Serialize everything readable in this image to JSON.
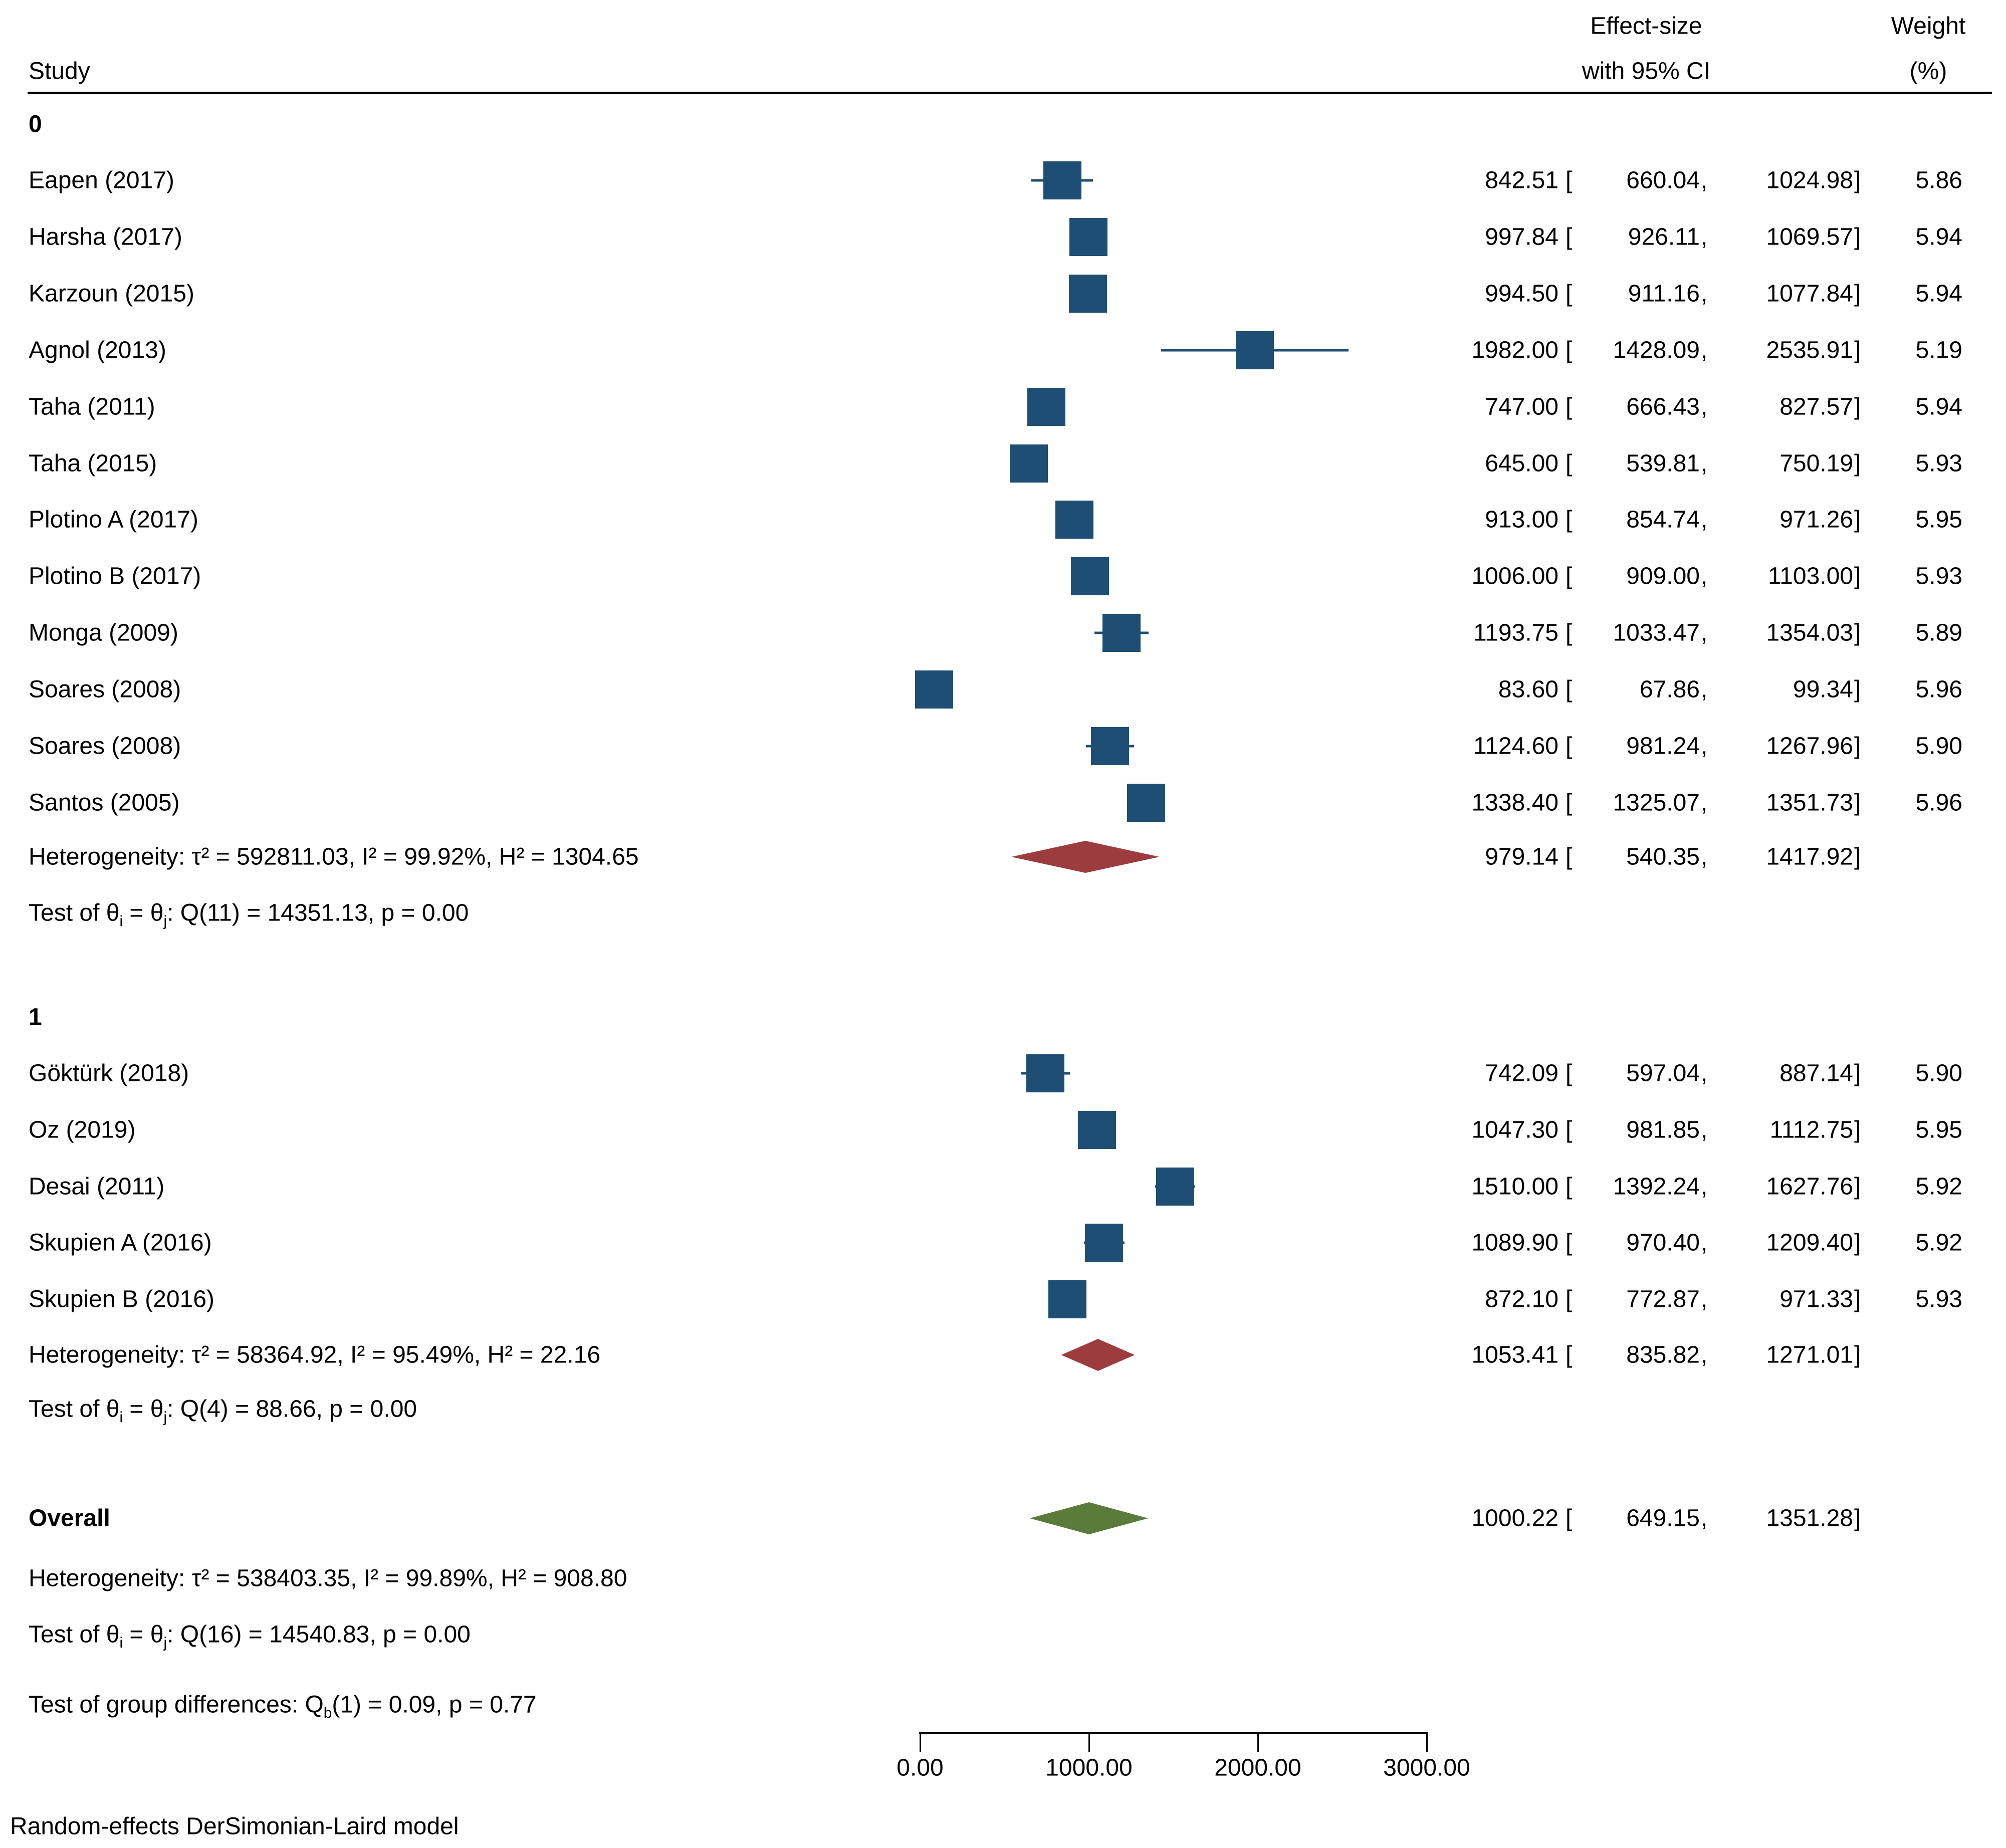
{
  "header": {
    "study": "Study",
    "effect_line1": "Effect-size",
    "effect_line2": "with 95% CI",
    "weight_line1": "Weight",
    "weight_line2": "(%)"
  },
  "punct": {
    "open": "[",
    "comma": ",",
    "close": "]"
  },
  "note": "Random-effects DerSimonian-Laird model",
  "colors": {
    "marker_blue": "#1F4E74",
    "subgroup_diamond_red": "#9D3C3E",
    "overall_diamond_green": "#5B7B3A"
  },
  "chart_data": {
    "type": "forest",
    "axis": {
      "min": 0,
      "max": 3000,
      "tick_values": [
        0,
        1000,
        2000,
        3000
      ],
      "tick_labels": [
        "0.00",
        "1000.00",
        "2000.00",
        "3000.00"
      ]
    },
    "groups": [
      {
        "label": "0",
        "studies": [
          {
            "name": "Eapen (2017)",
            "est": "842.51",
            "lo": "660.04",
            "hi": "1024.98",
            "weight": "5.86"
          },
          {
            "name": "Harsha (2017)",
            "est": "997.84",
            "lo": "926.11",
            "hi": "1069.57",
            "weight": "5.94"
          },
          {
            "name": "Karzoun (2015)",
            "est": "994.50",
            "lo": "911.16",
            "hi": "1077.84",
            "weight": "5.94"
          },
          {
            "name": "Agnol (2013)",
            "est": "1982.00",
            "lo": "1428.09",
            "hi": "2535.91",
            "weight": "5.19"
          },
          {
            "name": "Taha (2011)",
            "est": "747.00",
            "lo": "666.43",
            "hi": "827.57",
            "weight": "5.94"
          },
          {
            "name": "Taha (2015)",
            "est": "645.00",
            "lo": "539.81",
            "hi": "750.19",
            "weight": "5.93"
          },
          {
            "name": "Plotino A (2017)",
            "est": "913.00",
            "lo": "854.74",
            "hi": "971.26",
            "weight": "5.95"
          },
          {
            "name": "Plotino B (2017)",
            "est": "1006.00",
            "lo": "909.00",
            "hi": "1103.00",
            "weight": "5.93"
          },
          {
            "name": "Monga (2009)",
            "est": "1193.75",
            "lo": "1033.47",
            "hi": "1354.03",
            "weight": "5.89"
          },
          {
            "name": "Soares (2008)",
            "est": "83.60",
            "lo": "67.86",
            "hi": "99.34",
            "weight": "5.96"
          },
          {
            "name": "Soares (2008)",
            "est": "1124.60",
            "lo": "981.24",
            "hi": "1267.96",
            "weight": "5.90"
          },
          {
            "name": "Santos (2005)",
            "est": "1338.40",
            "lo": "1325.07",
            "hi": "1351.73",
            "weight": "5.96"
          }
        ],
        "diamond": {
          "est": "979.14",
          "lo": "540.35",
          "hi": "1417.92"
        },
        "het_text": "Heterogeneity: τ² = 592811.03, I² = 99.92%, H² = 1304.65",
        "test_segments": [
          {
            "t": "Test of θ"
          },
          {
            "sub": "i"
          },
          {
            "t": " = θ"
          },
          {
            "sub": "j"
          },
          {
            "t": ": Q(11) = 14351.13, p = 0.00"
          }
        ]
      },
      {
        "label": "1",
        "studies": [
          {
            "name": "Göktürk (2018)",
            "est": "742.09",
            "lo": "597.04",
            "hi": "887.14",
            "weight": "5.90"
          },
          {
            "name": "Oz (2019)",
            "est": "1047.30",
            "lo": "981.85",
            "hi": "1112.75",
            "weight": "5.95"
          },
          {
            "name": "Desai (2011)",
            "est": "1510.00",
            "lo": "1392.24",
            "hi": "1627.76",
            "weight": "5.92"
          },
          {
            "name": "Skupien A (2016)",
            "est": "1089.90",
            "lo": "970.40",
            "hi": "1209.40",
            "weight": "5.92"
          },
          {
            "name": "Skupien B (2016)",
            "est": "872.10",
            "lo": "772.87",
            "hi": "971.33",
            "weight": "5.93"
          }
        ],
        "diamond": {
          "est": "1053.41",
          "lo": "835.82",
          "hi": "1271.01"
        },
        "het_text": "Heterogeneity: τ² = 58364.92, I² = 95.49%, H² = 22.16",
        "test_segments": [
          {
            "t": "Test of θ"
          },
          {
            "sub": "i"
          },
          {
            "t": " = θ"
          },
          {
            "sub": "j"
          },
          {
            "t": ": Q(4) = 88.66, p = 0.00"
          }
        ]
      }
    ],
    "overall": {
      "label": "Overall",
      "diamond": {
        "est": "1000.22",
        "lo": "649.15",
        "hi": "1351.28"
      },
      "het_text": "Heterogeneity: τ² = 538403.35, I² = 99.89%, H² = 908.80",
      "test_segments": [
        {
          "t": "Test of θ"
        },
        {
          "sub": "i"
        },
        {
          "t": " = θ"
        },
        {
          "sub": "j"
        },
        {
          "t": ": Q(16) = 14540.83, p = 0.00"
        }
      ]
    },
    "group_diff_segments": [
      {
        "t": "Test of group differences: Q"
      },
      {
        "sub": "b"
      },
      {
        "t": "(1) = 0.09, p = 0.77"
      }
    ]
  }
}
